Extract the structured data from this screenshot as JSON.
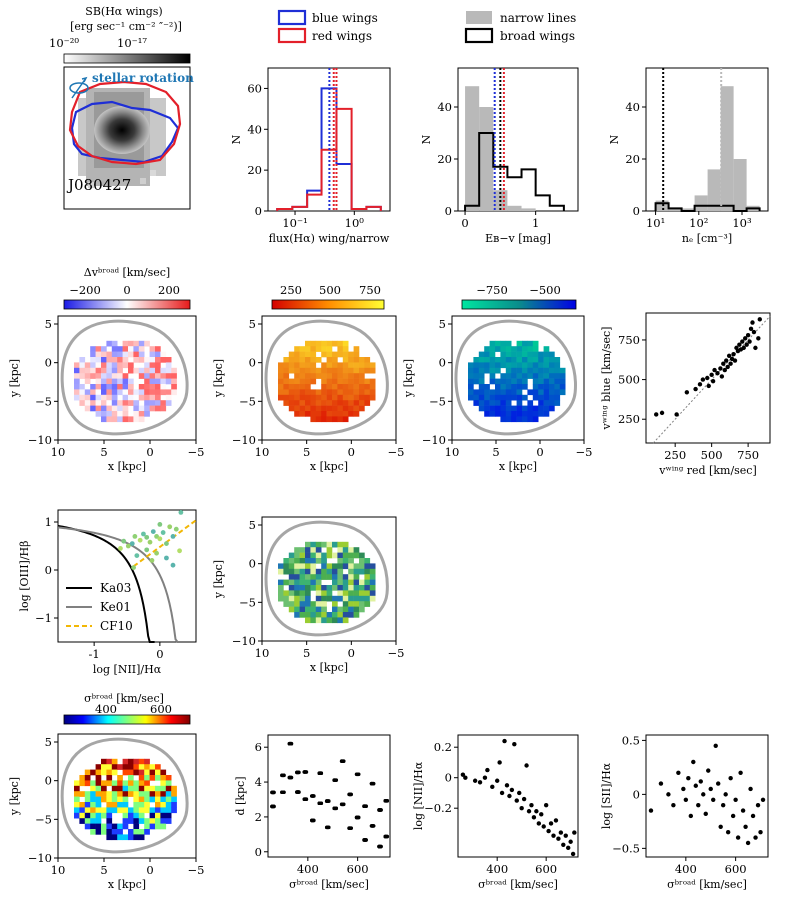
{
  "colors": {
    "blue": "#1f2fd6",
    "red": "#e3202a",
    "gray_fill": "#b9b9b9",
    "contour": "#a6a6a6",
    "cf10": "#f2b705",
    "rotation": "#1f77b4"
  },
  "shared": {
    "x_kpc_label": "x [kpc]",
    "y_kpc_label": "y [kpc]",
    "kpc_ticks": [
      "10",
      "5",
      "0",
      "−5"
    ],
    "y_kpc_ticks": [
      "5",
      "0",
      "−5",
      "−10"
    ]
  },
  "row1": {
    "sb_map": {
      "cbar_title_line1": "SB(Hα wings)",
      "cbar_title_line2": "[erg sec⁻¹ cm⁻² ″⁻²)]",
      "cbar_tick_low": "10⁻²⁰",
      "cbar_tick_high": "10⁻¹⁷",
      "rotation_label": "stellar rotation",
      "object_name": "J080427",
      "rotation_icon": "rotation-arrow-icon"
    },
    "legend_wings": {
      "blue": "blue wings",
      "red": "red wings"
    },
    "legend_lines": {
      "narrow": "narrow lines",
      "broad": "broad wings"
    }
  },
  "row3": {
    "legend": {
      "ka03": "Ka03",
      "ke01": "Ke01",
      "cf10": "CF10"
    }
  },
  "chart_data": [
    {
      "id": "flux-ratio-histogram",
      "type": "bar",
      "title": "",
      "xlabel": "flux(Hα) wing/narrow",
      "ylabel": "N",
      "xscale": "log",
      "xlim": [
        0.035,
        4.0
      ],
      "ylim": [
        0,
        70
      ],
      "xticks": [
        {
          "v": 0.1,
          "label": "10⁻¹"
        },
        {
          "v": 1,
          "label": "10⁰"
        }
      ],
      "yticks": [
        0,
        20,
        40,
        60
      ],
      "bin_edges": [
        0.05,
        0.09,
        0.16,
        0.28,
        0.5,
        0.9,
        1.6,
        2.8
      ],
      "series": [
        {
          "name": "blue wings",
          "color_key": "blue",
          "counts": [
            1,
            2,
            10,
            60,
            23,
            1,
            2
          ]
        },
        {
          "name": "red wings",
          "color_key": "red",
          "counts": [
            1,
            2,
            8,
            30,
            50,
            1,
            2
          ]
        }
      ],
      "vlines": [
        {
          "x": 0.38,
          "color_key": "blue"
        },
        {
          "x": 0.45,
          "color_key": "red"
        },
        {
          "x": 0.5,
          "color_key": "red"
        }
      ]
    },
    {
      "id": "ebv-histogram",
      "type": "bar",
      "title": "",
      "xlabel": "Eʙ−ᴠ [mag]",
      "ylabel": "N",
      "xlim": [
        -0.1,
        1.6
      ],
      "ylim": [
        0,
        55
      ],
      "xticks": [
        {
          "v": 0,
          "label": "0"
        },
        {
          "v": 1,
          "label": "1"
        }
      ],
      "yticks": [
        0,
        20,
        40
      ],
      "bin_edges": [
        0.0,
        0.2,
        0.4,
        0.6,
        0.8,
        1.0,
        1.2,
        1.4
      ],
      "series": [
        {
          "name": "narrow lines",
          "color_key": "gray_fill",
          "filled": true,
          "counts": [
            48,
            40,
            8,
            2,
            1,
            0,
            0
          ]
        },
        {
          "name": "broad wings",
          "color_key": "black",
          "filled": false,
          "counts": [
            2,
            30,
            17,
            13,
            16,
            6,
            2
          ]
        }
      ],
      "vlines": [
        {
          "x": 0.42,
          "color_key": "blue"
        },
        {
          "x": 0.55,
          "color_key": "red"
        },
        {
          "x": 0.5,
          "color_key": "black"
        }
      ]
    },
    {
      "id": "density-histogram",
      "type": "bar",
      "title": "",
      "xlabel": "nₑ [cm⁻³]",
      "ylabel": "N",
      "xscale": "log",
      "xlim": [
        6,
        4000
      ],
      "ylim": [
        0,
        55
      ],
      "xticks": [
        {
          "v": 10,
          "label": "10¹"
        },
        {
          "v": 100,
          "label": "10²"
        },
        {
          "v": 1000,
          "label": "10³"
        }
      ],
      "yticks": [
        0,
        20,
        40
      ],
      "bin_edges": [
        10,
        20,
        40,
        80,
        160,
        320,
        640,
        1280,
        2560
      ],
      "series": [
        {
          "name": "narrow lines",
          "color_key": "gray_fill",
          "filled": true,
          "counts": [
            4,
            1,
            1,
            6,
            16,
            48,
            20,
            2
          ]
        },
        {
          "name": "broad wings",
          "color_key": "black",
          "filled": false,
          "counts": [
            3,
            1,
            0,
            2,
            2,
            2,
            0,
            1
          ]
        }
      ],
      "vlines": [
        {
          "x": 15,
          "color_key": "black"
        },
        {
          "x": 330,
          "color_key": "gray_fill"
        }
      ]
    },
    {
      "id": "delta-v-map",
      "type": "heatmap",
      "title": "Δvᵇʳᵒᵃᵈ [km/sec]",
      "colormap": "bwr",
      "cbar_ticks": [
        "−200",
        "0",
        "200"
      ],
      "vmin": -300,
      "vmax": 300
    },
    {
      "id": "v-red-map",
      "type": "heatmap",
      "title": "",
      "colormap": "autumn",
      "cbar_ticks": [
        "250",
        "500",
        "750"
      ],
      "vmin": 150,
      "vmax": 850
    },
    {
      "id": "v-blue-map",
      "type": "heatmap",
      "title": "",
      "colormap": "winter",
      "cbar_ticks": [
        "−750",
        "−500"
      ],
      "vmin": -900,
      "vmax": -300
    },
    {
      "id": "vwing-scatter",
      "type": "scatter",
      "xlabel": "vʷⁱⁿᵍ red [km/sec]",
      "ylabel": "vʷⁱⁿᵍ blue [km/sec]",
      "xlim": [
        50,
        900
      ],
      "ylim": [
        100,
        920
      ],
      "xticks": [
        250,
        500,
        750
      ],
      "yticks": [
        250,
        500,
        750
      ],
      "one_to_one": true,
      "points": [
        [
          120,
          280
        ],
        [
          160,
          290
        ],
        [
          260,
          280
        ],
        [
          330,
          420
        ],
        [
          390,
          440
        ],
        [
          420,
          470
        ],
        [
          440,
          500
        ],
        [
          470,
          510
        ],
        [
          480,
          460
        ],
        [
          500,
          530
        ],
        [
          510,
          490
        ],
        [
          520,
          560
        ],
        [
          540,
          540
        ],
        [
          560,
          570
        ],
        [
          570,
          520
        ],
        [
          580,
          600
        ],
        [
          590,
          560
        ],
        [
          600,
          620
        ],
        [
          610,
          580
        ],
        [
          620,
          650
        ],
        [
          630,
          600
        ],
        [
          640,
          630
        ],
        [
          650,
          660
        ],
        [
          660,
          620
        ],
        [
          670,
          700
        ],
        [
          680,
          680
        ],
        [
          690,
          720
        ],
        [
          700,
          690
        ],
        [
          710,
          740
        ],
        [
          720,
          700
        ],
        [
          730,
          760
        ],
        [
          740,
          720
        ],
        [
          750,
          780
        ],
        [
          760,
          740
        ],
        [
          770,
          820
        ],
        [
          780,
          860
        ],
        [
          790,
          800
        ],
        [
          800,
          700
        ],
        [
          820,
          760
        ],
        [
          830,
          880
        ]
      ]
    },
    {
      "id": "bpt-diagram",
      "type": "scatter",
      "xlabel": "log [NII]/Hα",
      "ylabel": "log [OIII]/Hβ",
      "xlim": [
        -1.55,
        0.55
      ],
      "ylim": [
        -1.5,
        1.25
      ],
      "xticks": [
        -1,
        0
      ],
      "yticks": [
        -1,
        0,
        1
      ],
      "curves": [
        "Ka03",
        "Ke01",
        "CF10"
      ],
      "points": [
        [
          -0.55,
          0.6
        ],
        [
          -0.48,
          0.5
        ],
        [
          -0.42,
          0.55
        ],
        [
          -0.38,
          0.7
        ],
        [
          -0.3,
          0.62
        ],
        [
          -0.25,
          0.75
        ],
        [
          -0.2,
          0.68
        ],
        [
          -0.15,
          0.58
        ],
        [
          -0.1,
          0.8
        ],
        [
          -0.05,
          0.7
        ],
        [
          0.0,
          0.65
        ],
        [
          0.05,
          0.78
        ],
        [
          0.1,
          0.55
        ],
        [
          0.15,
          0.9
        ],
        [
          0.2,
          0.7
        ],
        [
          0.25,
          0.85
        ],
        [
          -0.6,
          0.45
        ],
        [
          -0.35,
          0.3
        ],
        [
          -0.2,
          0.42
        ],
        [
          -0.05,
          0.35
        ],
        [
          0.1,
          0.25
        ],
        [
          -0.4,
          0.05
        ],
        [
          0.3,
          0.4
        ],
        [
          0.32,
          1.2
        ],
        [
          0.0,
          0.95
        ],
        [
          -0.12,
          0.2
        ],
        [
          0.2,
          0.1
        ]
      ]
    },
    {
      "id": "d-vs-sigma",
      "type": "scatter",
      "xlabel": "σᵇʳᵒᵃᵈ [km/sec]",
      "ylabel": "d [kpc]",
      "xlim": [
        240,
        730
      ],
      "ylim": [
        -0.3,
        6.7
      ],
      "xticks": [
        400,
        600
      ],
      "yticks": [
        0,
        2,
        4,
        6
      ],
      "columns": [
        [
          260,
          2.6,
          4.1
        ],
        [
          300,
          3.0,
          4.8
        ],
        [
          330,
          2.6,
          6.2
        ],
        [
          360,
          3.1,
          5.2
        ],
        [
          390,
          1.9,
          4.8
        ],
        [
          420,
          1.6,
          4.2
        ],
        [
          450,
          1.8,
          5.0
        ],
        [
          480,
          1.4,
          4.2
        ],
        [
          510,
          1.8,
          4.8
        ],
        [
          540,
          0.6,
          5.2
        ],
        [
          570,
          0.8,
          4.4
        ],
        [
          600,
          0.2,
          4.8
        ],
        [
          630,
          0.4,
          4.0
        ],
        [
          660,
          0.1,
          4.6
        ],
        [
          690,
          0.3,
          4.2
        ],
        [
          715,
          0.0,
          3.8
        ]
      ]
    },
    {
      "id": "nii-vs-sigma",
      "type": "scatter",
      "xlabel": "σᵇʳᵒᵃᵈ [km/sec]",
      "ylabel": "log [NII]/Hα",
      "xlim": [
        240,
        730
      ],
      "ylim": [
        -0.52,
        0.28
      ],
      "xticks": [
        400,
        600
      ],
      "yticks": [
        -0.2,
        0.0,
        0.2
      ],
      "points": [
        [
          260,
          0.02
        ],
        [
          270,
          0.0
        ],
        [
          310,
          -0.02
        ],
        [
          330,
          -0.03
        ],
        [
          350,
          0.0
        ],
        [
          360,
          0.05
        ],
        [
          380,
          -0.06
        ],
        [
          400,
          -0.02
        ],
        [
          410,
          0.1
        ],
        [
          420,
          -0.1
        ],
        [
          430,
          0.24
        ],
        [
          440,
          -0.05
        ],
        [
          450,
          -0.12
        ],
        [
          460,
          -0.08
        ],
        [
          470,
          0.22
        ],
        [
          480,
          -0.15
        ],
        [
          490,
          -0.1
        ],
        [
          500,
          -0.2
        ],
        [
          510,
          -0.14
        ],
        [
          520,
          0.08
        ],
        [
          530,
          -0.22
        ],
        [
          540,
          -0.18
        ],
        [
          550,
          -0.26
        ],
        [
          560,
          -0.22
        ],
        [
          570,
          -0.3
        ],
        [
          580,
          -0.24
        ],
        [
          590,
          -0.32
        ],
        [
          600,
          -0.18
        ],
        [
          610,
          -0.35
        ],
        [
          620,
          -0.3
        ],
        [
          630,
          -0.38
        ],
        [
          640,
          -0.28
        ],
        [
          650,
          -0.4
        ],
        [
          660,
          -0.36
        ],
        [
          670,
          -0.44
        ],
        [
          680,
          -0.38
        ],
        [
          690,
          -0.46
        ],
        [
          700,
          -0.42
        ],
        [
          710,
          -0.5
        ],
        [
          715,
          -0.36
        ]
      ]
    },
    {
      "id": "sii-vs-sigma",
      "type": "scatter",
      "xlabel": "σᵇʳᵒᵃᵈ [km/sec]",
      "ylabel": "log [SII]/Hα",
      "xlim": [
        240,
        730
      ],
      "ylim": [
        -0.58,
        0.55
      ],
      "xticks": [
        400,
        600
      ],
      "yticks": [
        -0.5,
        0.0,
        0.5
      ],
      "points": [
        [
          260,
          -0.15
        ],
        [
          300,
          0.1
        ],
        [
          330,
          0.0
        ],
        [
          350,
          -0.1
        ],
        [
          370,
          0.2
        ],
        [
          390,
          0.05
        ],
        [
          400,
          -0.05
        ],
        [
          410,
          0.15
        ],
        [
          420,
          -0.2
        ],
        [
          430,
          0.3
        ],
        [
          440,
          0.08
        ],
        [
          450,
          -0.1
        ],
        [
          460,
          0.12
        ],
        [
          470,
          0.0
        ],
        [
          480,
          -0.18
        ],
        [
          490,
          0.22
        ],
        [
          500,
          0.05
        ],
        [
          510,
          -0.05
        ],
        [
          520,
          0.45
        ],
        [
          530,
          0.1
        ],
        [
          540,
          -0.3
        ],
        [
          550,
          -0.1
        ],
        [
          560,
          0.0
        ],
        [
          570,
          -0.35
        ],
        [
          580,
          0.15
        ],
        [
          590,
          -0.2
        ],
        [
          600,
          -0.05
        ],
        [
          610,
          -0.4
        ],
        [
          620,
          0.2
        ],
        [
          630,
          -0.15
        ],
        [
          640,
          -0.3
        ],
        [
          650,
          -0.45
        ],
        [
          660,
          0.05
        ],
        [
          670,
          -0.2
        ],
        [
          680,
          -0.4
        ],
        [
          690,
          -0.1
        ],
        [
          700,
          -0.35
        ],
        [
          710,
          -0.05
        ]
      ]
    },
    {
      "id": "sigma-map",
      "type": "heatmap",
      "title": "σᵇʳᵒᵃᵈ [km/sec]",
      "colormap": "jet",
      "cbar_ticks": [
        "400",
        "600"
      ],
      "vmin": 250,
      "vmax": 750
    }
  ]
}
